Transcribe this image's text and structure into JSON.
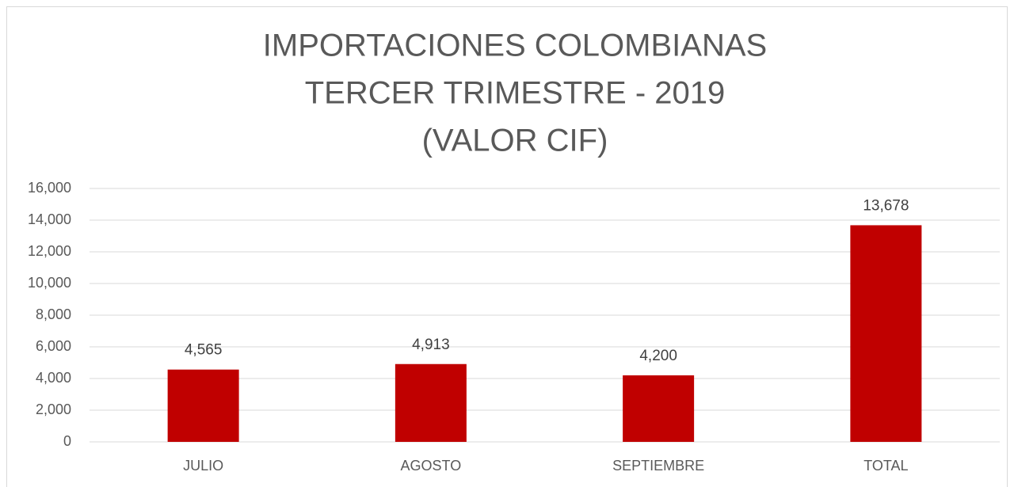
{
  "chart_data": {
    "type": "bar",
    "title": [
      "IMPORTACIONES COLOMBIANAS",
      "TERCER TRIMESTRE - 2019",
      "(VALOR CIF)"
    ],
    "categories": [
      "JULIO",
      "AGOSTO",
      "SEPTIEMBRE",
      "TOTAL"
    ],
    "values": [
      4565,
      4913,
      4200,
      13678
    ],
    "value_labels": [
      "4,565",
      "4,913",
      "4,200",
      "13,678"
    ],
    "color": "#c00000",
    "ylim": [
      0,
      16000
    ],
    "yticks": [
      0,
      {
        "value": 2000,
        "label": "2,000"
      },
      {
        "value": 4000,
        "label": "4,000"
      },
      {
        "value": 6000,
        "label": "6,000"
      },
      {
        "value": 8000,
        "label": "8,000"
      },
      {
        "value": 10000,
        "label": "10,000"
      },
      {
        "value": 12000,
        "label": "12,000"
      },
      {
        "value": 14000,
        "label": "14,000"
      },
      {
        "value": 16000,
        "label": "16,000"
      }
    ],
    "grid": true
  }
}
